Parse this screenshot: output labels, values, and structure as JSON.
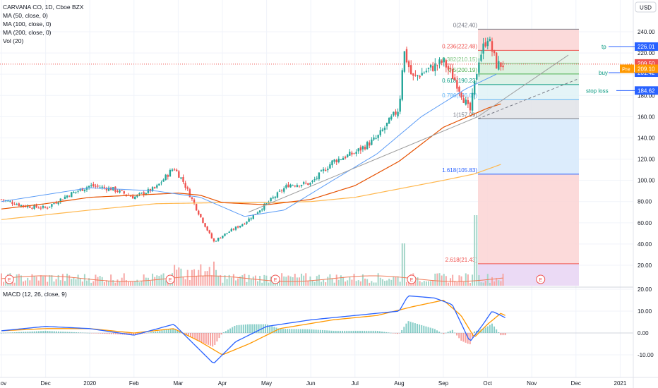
{
  "header": {
    "symbol_line": "CARVANA CO, 1D, Cboe BZX",
    "indicators": [
      "MA (50, close, 0)",
      "MA (100, close, 0)",
      "MA (200, close, 0)",
      "Vol (20)"
    ],
    "currency": "USD"
  },
  "macd_panel": {
    "title": "MACD (12, 26, close, 9)"
  },
  "x_axis": {
    "labels": [
      "Nov",
      "Dec",
      "2020",
      "Feb",
      "Mar",
      "Apr",
      "May",
      "Jun",
      "Jul",
      "Aug",
      "Sep",
      "Oct",
      "Nov",
      "Dec",
      "2021"
    ]
  },
  "price_axis": {
    "ticks": [
      "240.00",
      "220.00",
      "200.00",
      "180.00",
      "160.00",
      "140.00",
      "120.00",
      "100.00",
      "80.00",
      "60.00",
      "40.00",
      "20.00"
    ],
    "tick_values": [
      240,
      220,
      200,
      180,
      160,
      140,
      120,
      100,
      80,
      60,
      40,
      20
    ]
  },
  "macd_axis": {
    "ticks": [
      "20.00",
      "10.00",
      "0.00",
      "-10.00"
    ],
    "tick_values": [
      20,
      10,
      0,
      -10
    ]
  },
  "fib_levels": [
    {
      "label": "0(242.40)",
      "value": 242.4
    },
    {
      "label": "0.236(222.48)",
      "value": 222.48
    },
    {
      "label": "0.382(210.15)",
      "value": 210.15
    },
    {
      "label": "0.5(200.19)",
      "value": 200.19
    },
    {
      "label": "0.618(190.23)",
      "value": 190.23
    },
    {
      "label": "0.786(176.05)",
      "value": 176.05
    },
    {
      "label": "1(157.99)",
      "value": 157.99
    },
    {
      "label": "1.618(105.83)",
      "value": 105.83
    },
    {
      "label": "2.618(21.43)",
      "value": 21.43
    }
  ],
  "annotations": [
    {
      "label": "tp",
      "value": "226.01",
      "price": 226.01,
      "color": "#2962ff"
    },
    {
      "label": "buy",
      "value": "201.42",
      "price": 201.42,
      "color": "#2962ff"
    },
    {
      "label": "stop loss",
      "value": "184.62",
      "price": 184.62,
      "color": "#2962ff"
    }
  ],
  "price_badges": [
    {
      "value": "209.50",
      "price": 209.5,
      "color": "#ef5350"
    },
    {
      "tag": "Pre",
      "value": "209.10",
      "price": 209.1,
      "color": "#ff9800"
    }
  ],
  "earnings_marker": "E",
  "colors": {
    "up": "#26a69a",
    "down": "#ef5350",
    "ma50": "#5b9cf6",
    "ma100": "#e65100",
    "ma200": "#ffb74d",
    "macd": "#2962ff",
    "signal": "#ff9800",
    "accent": "#2962ff"
  },
  "chart_data": {
    "type": "candlestick",
    "title": "CARVANA CO, 1D, Cboe BZX",
    "price_ylim": [
      0,
      250
    ],
    "macd_ylim": [
      -15,
      20
    ],
    "close_path": [
      {
        "t": 0,
        "v": 82
      },
      {
        "t": 0.5,
        "v": 76
      },
      {
        "t": 1,
        "v": 74
      },
      {
        "t": 1.5,
        "v": 86
      },
      {
        "t": 2,
        "v": 95
      },
      {
        "t": 2.5,
        "v": 92
      },
      {
        "t": 3,
        "v": 84
      },
      {
        "t": 3.5,
        "v": 93
      },
      {
        "t": 3.9,
        "v": 112
      },
      {
        "t": 4.1,
        "v": 100
      },
      {
        "t": 4.5,
        "v": 66
      },
      {
        "t": 4.8,
        "v": 42
      },
      {
        "t": 5,
        "v": 48
      },
      {
        "t": 5.5,
        "v": 60
      },
      {
        "t": 6,
        "v": 78
      },
      {
        "t": 6.5,
        "v": 96
      },
      {
        "t": 7,
        "v": 97
      },
      {
        "t": 7.5,
        "v": 118
      },
      {
        "t": 8,
        "v": 126
      },
      {
        "t": 8.5,
        "v": 140
      },
      {
        "t": 9,
        "v": 168
      },
      {
        "t": 9.1,
        "v": 223
      },
      {
        "t": 9.3,
        "v": 196
      },
      {
        "t": 9.6,
        "v": 203
      },
      {
        "t": 10,
        "v": 212
      },
      {
        "t": 10.3,
        "v": 192
      },
      {
        "t": 10.6,
        "v": 164
      },
      {
        "t": 10.8,
        "v": 214
      },
      {
        "t": 11,
        "v": 236
      },
      {
        "t": 11.2,
        "v": 209
      }
    ],
    "ma50": [
      {
        "t": 0,
        "v": 80
      },
      {
        "t": 2,
        "v": 93
      },
      {
        "t": 3.5,
        "v": 90
      },
      {
        "t": 4.5,
        "v": 84
      },
      {
        "t": 5.5,
        "v": 66
      },
      {
        "t": 6.4,
        "v": 72
      },
      {
        "t": 7.5,
        "v": 100
      },
      {
        "t": 8.5,
        "v": 125
      },
      {
        "t": 9.5,
        "v": 160
      },
      {
        "t": 10.5,
        "v": 186
      },
      {
        "t": 11.2,
        "v": 200
      }
    ],
    "ma100": [
      {
        "t": 0,
        "v": 73
      },
      {
        "t": 1,
        "v": 78
      },
      {
        "t": 2,
        "v": 84
      },
      {
        "t": 3,
        "v": 86
      },
      {
        "t": 4,
        "v": 88
      },
      {
        "t": 4.5,
        "v": 86
      },
      {
        "t": 5,
        "v": 79
      },
      {
        "t": 6,
        "v": 77
      },
      {
        "t": 7,
        "v": 82
      },
      {
        "t": 8,
        "v": 95
      },
      {
        "t": 9,
        "v": 118
      },
      {
        "t": 10,
        "v": 150
      },
      {
        "t": 11,
        "v": 168
      },
      {
        "t": 11.3,
        "v": 172
      }
    ],
    "ma200": [
      {
        "t": 0,
        "v": 63
      },
      {
        "t": 2,
        "v": 72
      },
      {
        "t": 3.5,
        "v": 78
      },
      {
        "t": 5,
        "v": 79
      },
      {
        "t": 6,
        "v": 79
      },
      {
        "t": 7,
        "v": 80
      },
      {
        "t": 8,
        "v": 84
      },
      {
        "t": 9,
        "v": 92
      },
      {
        "t": 10,
        "v": 100
      },
      {
        "t": 10.7,
        "v": 106
      },
      {
        "t": 11.3,
        "v": 115
      }
    ],
    "macd_line": [
      {
        "t": 0,
        "v": 1
      },
      {
        "t": 1,
        "v": 3
      },
      {
        "t": 2,
        "v": 2
      },
      {
        "t": 3,
        "v": -1
      },
      {
        "t": 3.9,
        "v": 4
      },
      {
        "t": 4.3,
        "v": -4
      },
      {
        "t": 4.8,
        "v": -14
      },
      {
        "t": 5.3,
        "v": -4
      },
      {
        "t": 6,
        "v": 3
      },
      {
        "t": 7,
        "v": 6
      },
      {
        "t": 8,
        "v": 8
      },
      {
        "t": 9,
        "v": 10
      },
      {
        "t": 9.2,
        "v": 17
      },
      {
        "t": 9.8,
        "v": 16
      },
      {
        "t": 10.2,
        "v": 13
      },
      {
        "t": 10.6,
        "v": -4
      },
      {
        "t": 10.9,
        "v": 4
      },
      {
        "t": 11.1,
        "v": 10
      },
      {
        "t": 11.4,
        "v": 7
      }
    ],
    "signal_line": [
      {
        "t": 0,
        "v": 1
      },
      {
        "t": 1,
        "v": 2
      },
      {
        "t": 2,
        "v": 2
      },
      {
        "t": 3,
        "v": 0
      },
      {
        "t": 3.9,
        "v": 2
      },
      {
        "t": 4.5,
        "v": -4
      },
      {
        "t": 5,
        "v": -10
      },
      {
        "t": 5.6,
        "v": -5
      },
      {
        "t": 6.3,
        "v": 2
      },
      {
        "t": 7.5,
        "v": 6
      },
      {
        "t": 8.5,
        "v": 8
      },
      {
        "t": 9.3,
        "v": 12
      },
      {
        "t": 10,
        "v": 15
      },
      {
        "t": 10.4,
        "v": 8
      },
      {
        "t": 10.7,
        "v": -2
      },
      {
        "t": 11,
        "v": 4
      },
      {
        "t": 11.3,
        "v": 9
      },
      {
        "t": 11.4,
        "v": 8
      }
    ]
  }
}
